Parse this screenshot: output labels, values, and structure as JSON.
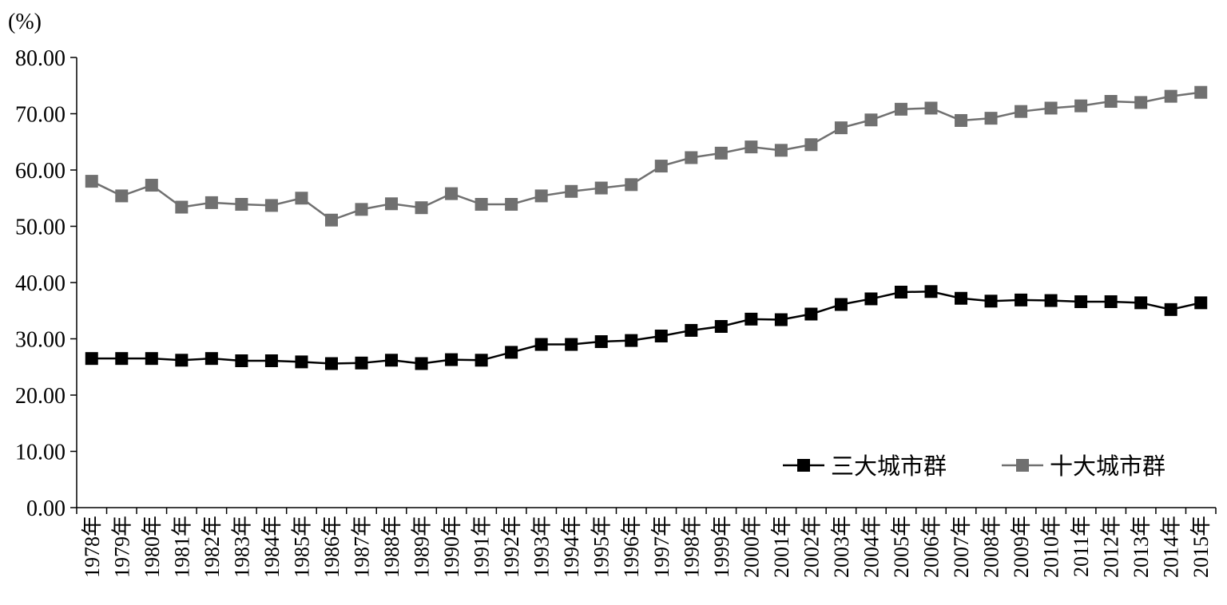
{
  "chart_data": {
    "type": "line",
    "unit_label": "(%)",
    "ylim": [
      0,
      80
    ],
    "yticks": [
      "0.00",
      "10.00",
      "20.00",
      "30.00",
      "40.00",
      "50.00",
      "60.00",
      "70.00",
      "80.00"
    ],
    "grid": false,
    "legend_position": "bottom-right",
    "categories": [
      "1978年",
      "1979年",
      "1980年",
      "1981年",
      "1982年",
      "1983年",
      "1984年",
      "1985年",
      "1986年",
      "1987年",
      "1988年",
      "1989年",
      "1990年",
      "1991年",
      "1992年",
      "1993年",
      "1994年",
      "1995年",
      "1996年",
      "1997年",
      "1998年",
      "1999年",
      "2000年",
      "2001年",
      "2002年",
      "2003年",
      "2004年",
      "2005年",
      "2006年",
      "2007年",
      "2008年",
      "2009年",
      "2010年",
      "2011年",
      "2012年",
      "2013年",
      "2014年",
      "2015年"
    ],
    "series": [
      {
        "name": "三大城市群",
        "color": "#000000",
        "values": [
          26.5,
          26.5,
          26.5,
          26.2,
          26.5,
          26.1,
          26.1,
          25.9,
          25.6,
          25.7,
          26.2,
          25.6,
          26.3,
          26.2,
          27.6,
          29.0,
          29.0,
          29.5,
          29.7,
          30.5,
          31.5,
          32.2,
          33.5,
          33.4,
          34.4,
          36.1,
          37.1,
          38.3,
          38.4,
          37.2,
          36.7,
          36.9,
          36.8,
          36.6,
          36.6,
          36.4,
          35.2,
          36.4
        ]
      },
      {
        "name": "十大城市群",
        "color": "#707070",
        "values": [
          58.0,
          55.4,
          57.3,
          53.4,
          54.2,
          53.9,
          53.7,
          55.0,
          51.1,
          53.0,
          54.0,
          53.3,
          55.8,
          53.9,
          53.9,
          55.4,
          56.2,
          56.8,
          57.4,
          60.7,
          62.2,
          63.0,
          64.1,
          63.5,
          64.5,
          67.5,
          68.9,
          70.8,
          71.0,
          68.8,
          69.2,
          70.4,
          71.0,
          71.4,
          72.2,
          72.0,
          73.1,
          73.8
        ]
      }
    ]
  }
}
